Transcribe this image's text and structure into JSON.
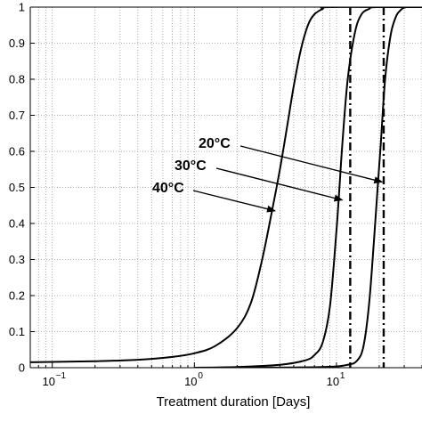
{
  "chart_data": {
    "type": "line",
    "title": "",
    "xlabel": "Treatment duration [Days]",
    "ylabel": "",
    "x_scale": "log",
    "xlim": [
      0.07,
      40
    ],
    "ylim": [
      0,
      1
    ],
    "grid": true,
    "y_ticks": [
      "0",
      "0.1",
      "0.2",
      "0.3",
      "0.4",
      "0.5",
      "0.6",
      "0.7",
      "0.8",
      "0.9",
      "1"
    ],
    "x_tick_labels": [
      {
        "base": "10",
        "exp": "−1",
        "value": 0.1
      },
      {
        "base": "10",
        "exp": "0",
        "value": 1
      },
      {
        "base": "10",
        "exp": "1",
        "value": 10
      }
    ],
    "series": [
      {
        "label": "40°C",
        "points": [
          [
            0.07,
            0.015
          ],
          [
            0.1,
            0.016
          ],
          [
            0.2,
            0.018
          ],
          [
            0.4,
            0.022
          ],
          [
            0.7,
            0.03
          ],
          [
            1.0,
            0.04
          ],
          [
            1.4,
            0.06
          ],
          [
            2.0,
            0.11
          ],
          [
            2.5,
            0.18
          ],
          [
            3.0,
            0.3
          ],
          [
            3.5,
            0.43
          ],
          [
            4.0,
            0.55
          ],
          [
            4.5,
            0.67
          ],
          [
            5.0,
            0.78
          ],
          [
            5.6,
            0.88
          ],
          [
            6.3,
            0.95
          ],
          [
            7.0,
            0.98
          ],
          [
            8.0,
            0.995
          ],
          [
            9.0,
            1.0
          ],
          [
            40,
            1.0
          ]
        ]
      },
      {
        "label": "30°C",
        "points": [
          [
            1.0,
            0.0
          ],
          [
            2.0,
            0.002
          ],
          [
            4.0,
            0.008
          ],
          [
            6.0,
            0.02
          ],
          [
            7.0,
            0.035
          ],
          [
            8.0,
            0.07
          ],
          [
            9.0,
            0.17
          ],
          [
            10.0,
            0.38
          ],
          [
            10.5,
            0.5
          ],
          [
            11.0,
            0.62
          ],
          [
            12.0,
            0.8
          ],
          [
            13.5,
            0.93
          ],
          [
            15.0,
            0.98
          ],
          [
            17.0,
            0.995
          ],
          [
            19.0,
            1.0
          ],
          [
            40,
            1.0
          ]
        ]
      },
      {
        "label": "20°C",
        "points": [
          [
            2.0,
            0.0
          ],
          [
            8.0,
            0.002
          ],
          [
            12.0,
            0.008
          ],
          [
            14.0,
            0.02
          ],
          [
            15.5,
            0.06
          ],
          [
            17.0,
            0.18
          ],
          [
            18.5,
            0.37
          ],
          [
            19.5,
            0.5
          ],
          [
            20.5,
            0.62
          ],
          [
            22.0,
            0.8
          ],
          [
            24.0,
            0.92
          ],
          [
            26.0,
            0.97
          ],
          [
            28.0,
            0.99
          ],
          [
            31.0,
            1.0
          ],
          [
            40,
            1.0
          ]
        ]
      }
    ],
    "vertical_lines": [
      {
        "x": 12.5,
        "style": "dash-dot"
      },
      {
        "x": 21.5,
        "style": "dash-dot"
      }
    ],
    "annotations": [
      {
        "text": "20°C",
        "arrow_to": [
          21.0,
          0.515
        ]
      },
      {
        "text": "30°C",
        "arrow_to": [
          11.0,
          0.465
        ]
      },
      {
        "text": "40°C",
        "arrow_to": [
          3.7,
          0.435
        ]
      }
    ]
  }
}
